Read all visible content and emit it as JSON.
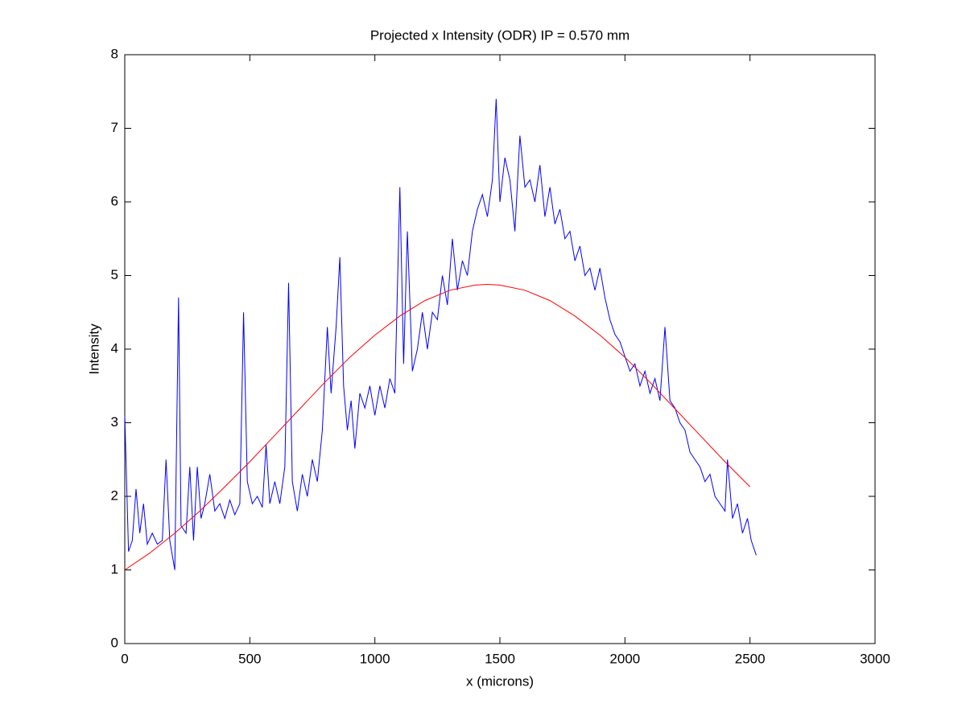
{
  "chart_data": {
    "type": "line",
    "title": "Projected x Intensity (ODR) IP = 0.570 mm",
    "x_label": "x (microns)",
    "y_label": "Intensity",
    "xlim": [
      0,
      3000
    ],
    "xticks": [
      0,
      500,
      1000,
      1500,
      2000,
      2500,
      3000
    ],
    "ylim": [
      0,
      8
    ],
    "yticks": [
      0,
      1,
      2,
      3,
      4,
      5,
      6,
      7,
      8
    ],
    "grid": false,
    "series": [
      {
        "color": "#0000ff",
        "x": [
          0,
          15,
          30,
          45,
          60,
          75,
          90,
          110,
          130,
          150,
          165,
          180,
          200,
          215,
          225,
          245,
          260,
          275,
          290,
          305,
          320,
          340,
          360,
          380,
          400,
          420,
          440,
          460,
          475,
          490,
          510,
          530,
          550,
          565,
          580,
          600,
          620,
          640,
          655,
          670,
          690,
          710,
          730,
          750,
          770,
          790,
          810,
          825,
          845,
          860,
          875,
          890,
          905,
          920,
          940,
          960,
          980,
          1000,
          1020,
          1040,
          1060,
          1080,
          1100,
          1115,
          1130,
          1150,
          1170,
          1190,
          1210,
          1230,
          1250,
          1270,
          1290,
          1310,
          1330,
          1350,
          1370,
          1390,
          1410,
          1430,
          1450,
          1470,
          1485,
          1500,
          1520,
          1540,
          1560,
          1580,
          1600,
          1620,
          1640,
          1660,
          1680,
          1700,
          1720,
          1740,
          1760,
          1780,
          1800,
          1820,
          1840,
          1860,
          1880,
          1900,
          1920,
          1940,
          1960,
          1980,
          2000,
          2020,
          2040,
          2060,
          2080,
          2100,
          2120,
          2140,
          2160,
          2180,
          2200,
          2220,
          2240,
          2260,
          2280,
          2300,
          2320,
          2340,
          2360,
          2380,
          2400,
          2410,
          2430,
          2450,
          2470,
          2490,
          2505,
          2525
        ],
        "values": [
          3.1,
          1.25,
          1.4,
          2.1,
          1.5,
          1.9,
          1.35,
          1.5,
          1.35,
          1.4,
          2.5,
          1.4,
          1.0,
          4.7,
          1.6,
          1.5,
          2.4,
          1.4,
          2.4,
          1.7,
          1.9,
          2.3,
          1.8,
          1.9,
          1.7,
          1.95,
          1.75,
          1.9,
          4.5,
          2.2,
          1.9,
          2.0,
          1.85,
          2.7,
          1.9,
          2.2,
          1.9,
          2.4,
          4.9,
          2.2,
          1.8,
          2.3,
          2.0,
          2.5,
          2.2,
          2.9,
          4.3,
          3.4,
          4.3,
          5.25,
          3.5,
          2.9,
          3.3,
          2.65,
          3.4,
          3.2,
          3.5,
          3.1,
          3.5,
          3.2,
          3.6,
          3.4,
          6.2,
          3.8,
          5.6,
          3.7,
          4.0,
          4.5,
          4.0,
          4.5,
          4.4,
          5.0,
          4.6,
          5.5,
          4.8,
          5.2,
          5.0,
          5.6,
          5.9,
          6.1,
          5.8,
          6.3,
          7.4,
          6.0,
          6.6,
          6.3,
          5.6,
          6.9,
          6.2,
          6.3,
          6.0,
          6.5,
          5.8,
          6.2,
          5.7,
          5.9,
          5.5,
          5.6,
          5.2,
          5.4,
          5.0,
          5.1,
          4.8,
          5.1,
          4.7,
          4.4,
          4.2,
          4.1,
          3.9,
          3.7,
          3.8,
          3.5,
          3.7,
          3.4,
          3.6,
          3.3,
          4.3,
          3.3,
          3.2,
          3.0,
          2.9,
          2.6,
          2.5,
          2.4,
          2.2,
          2.3,
          2.0,
          1.9,
          1.8,
          2.5,
          1.7,
          1.9,
          1.5,
          1.7,
          1.4,
          1.2
        ]
      },
      {
        "color": "#ff0000",
        "x": [
          0,
          100,
          200,
          300,
          400,
          500,
          600,
          700,
          800,
          900,
          1000,
          1100,
          1200,
          1300,
          1400,
          1450,
          1500,
          1600,
          1700,
          1800,
          1900,
          2000,
          2100,
          2200,
          2300,
          2400,
          2500
        ],
        "values": [
          1.0,
          1.23,
          1.5,
          1.8,
          2.13,
          2.47,
          2.83,
          3.19,
          3.55,
          3.89,
          4.19,
          4.45,
          4.66,
          4.8,
          4.87,
          4.88,
          4.87,
          4.8,
          4.66,
          4.45,
          4.19,
          3.89,
          3.55,
          3.19,
          2.83,
          2.47,
          2.13
        ]
      }
    ]
  }
}
